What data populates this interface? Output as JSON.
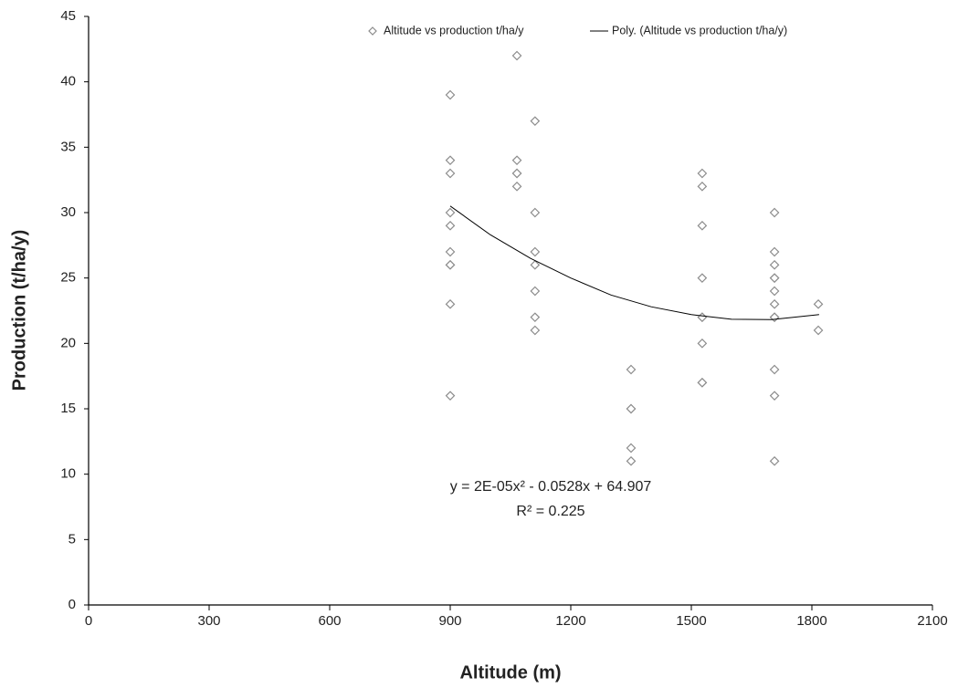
{
  "chart_data": {
    "type": "scatter",
    "x_label": "Altitude (m)",
    "y_label": "Production (t/ha/y)",
    "xlim": [
      0,
      2100
    ],
    "xticks": [
      0,
      300,
      600,
      900,
      1200,
      1500,
      1800,
      2100
    ],
    "ylim": [
      0,
      45
    ],
    "yticks": [
      0,
      5,
      10,
      15,
      20,
      25,
      30,
      35,
      40,
      45
    ],
    "grid": false,
    "legend": "top",
    "series": [
      {
        "name": "Altitude vs production t/ha/y",
        "color": "#8c8c8c",
        "marker": "diamond",
        "x": [
          900,
          900,
          900,
          900,
          900,
          900,
          900,
          900,
          900,
          900,
          1066,
          1066,
          1066,
          1066,
          1066,
          1111,
          1111,
          1111,
          1111,
          1111,
          1111,
          1111,
          1350,
          1350,
          1350,
          1350,
          1350,
          1527,
          1527,
          1527,
          1527,
          1527,
          1527,
          1527,
          1527,
          1527,
          1707,
          1707,
          1707,
          1707,
          1707,
          1707,
          1707,
          1707,
          1707,
          1707,
          1707,
          1707,
          1816,
          1816
        ],
        "values": [
          39,
          34,
          33,
          30,
          29,
          27,
          26,
          26,
          23,
          16,
          42,
          34,
          33,
          33,
          32,
          37,
          30,
          27,
          26,
          24,
          22,
          21,
          18,
          15,
          15,
          12,
          11,
          33,
          32,
          29,
          25,
          22,
          22,
          20,
          17,
          17,
          30,
          27,
          26,
          25,
          25,
          24,
          23,
          22,
          22,
          18,
          16,
          11,
          23,
          21
        ]
      },
      {
        "name": "Poly. (Altitude vs production t/ha/y)",
        "color": "#000000",
        "type": "line",
        "x": [
          900,
          1000,
          1100,
          1200,
          1300,
          1400,
          1500,
          1600,
          1700,
          1818
        ],
        "values": [
          30.5,
          28.3,
          26.5,
          25.0,
          23.7,
          22.8,
          22.2,
          21.85,
          21.82,
          22.2
        ]
      }
    ],
    "annotations": [
      "y = 2E-05x² - 0.0528x + 64.907",
      "R² = 0.225"
    ]
  }
}
